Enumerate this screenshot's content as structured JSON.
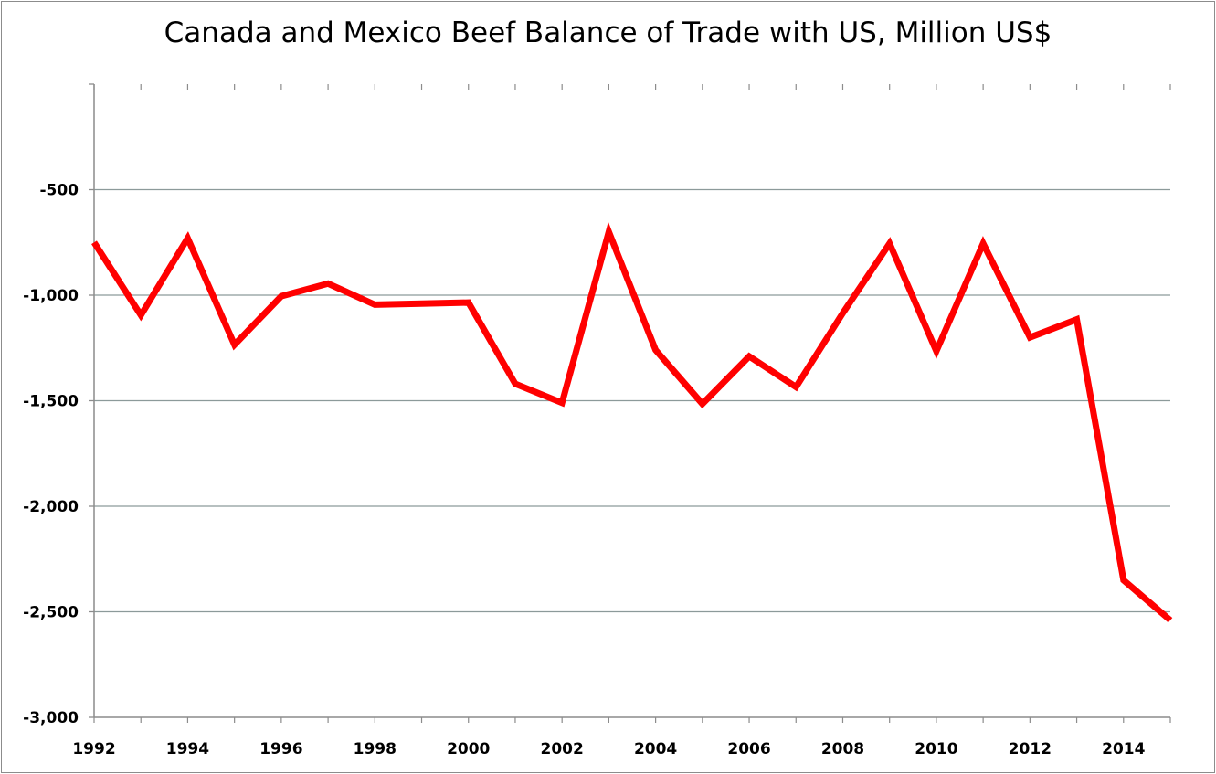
{
  "chart_data": {
    "type": "line",
    "title": "Canada and Mexico Beef Balance of Trade with US, Million US$",
    "xlabel": "",
    "ylabel": "",
    "x": [
      1992,
      1993,
      1994,
      1995,
      1996,
      1997,
      1998,
      1999,
      2000,
      2001,
      2002,
      2003,
      2004,
      2005,
      2006,
      2007,
      2008,
      2009,
      2010,
      2011,
      2012,
      2013,
      2014,
      2015
    ],
    "series": [
      {
        "values": [
          -750,
          -1095,
          -730,
          -1235,
          -1005,
          -945,
          -1045,
          -1040,
          -1035,
          -1420,
          -1510,
          -700,
          -1260,
          -1515,
          -1290,
          -1435,
          -1085,
          -755,
          -1265,
          -755,
          -1200,
          -1115,
          -2350,
          -2540
        ],
        "color": "#ff0000"
      }
    ],
    "xlim": [
      1992,
      2015
    ],
    "ylim": [
      -3000,
      0
    ],
    "y_ticks": [
      -3000,
      -2500,
      -2000,
      -1500,
      -1000,
      -500
    ],
    "y_tick_labels": [
      "-3,000",
      "-2,500",
      "-2,000",
      "-1,500",
      "-1,000",
      "-500"
    ],
    "x_ticks": [
      1992,
      1994,
      1996,
      1998,
      2000,
      2002,
      2004,
      2006,
      2008,
      2010,
      2012,
      2014
    ],
    "x_tick_labels": [
      "1992",
      "1994",
      "1996",
      "1998",
      "2000",
      "2002",
      "2004",
      "2006",
      "2008",
      "2010",
      "2012",
      "2014"
    ],
    "grid": true,
    "legend": "none",
    "colors": {
      "line": "#ff0000",
      "grid": "#8c9a9a",
      "axis": "#8c8c8c"
    }
  }
}
